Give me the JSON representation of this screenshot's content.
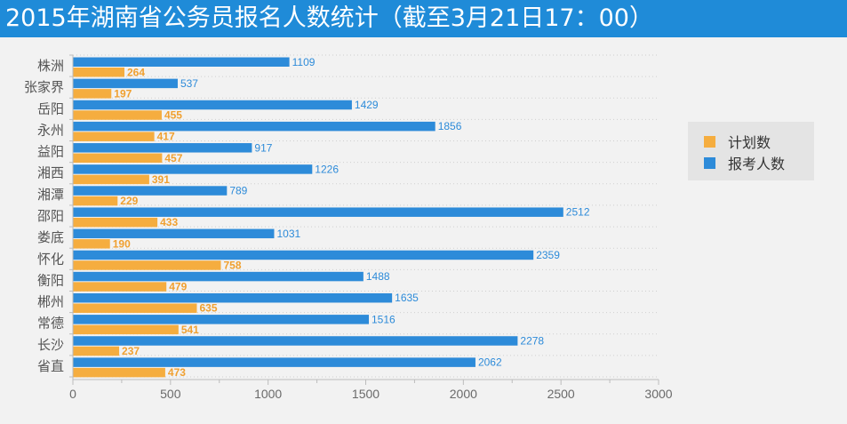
{
  "title": "2015年湖南省公务员报名人数统计（截至3月21日17：00）",
  "colors": {
    "plan": "#f5ad3f",
    "applicants": "#2d8bd9",
    "title_bg": "#1f8bd8"
  },
  "legend": {
    "items": [
      {
        "label": "计划数",
        "color": "#f5ad3f"
      },
      {
        "label": "报考人数",
        "color": "#2d8bd9"
      }
    ]
  },
  "chart_data": {
    "type": "bar",
    "orientation": "horizontal",
    "categories": [
      "株洲",
      "张家界",
      "岳阳",
      "永州",
      "益阳",
      "湘西",
      "湘潭",
      "邵阳",
      "娄底",
      "怀化",
      "衡阳",
      "郴州",
      "常德",
      "长沙",
      "省直"
    ],
    "series": [
      {
        "name": "报考人数",
        "values": [
          1109,
          537,
          1429,
          1856,
          917,
          1226,
          789,
          2512,
          1031,
          2359,
          1488,
          1635,
          1516,
          2278,
          2062
        ]
      },
      {
        "name": "计划数",
        "values": [
          264,
          197,
          455,
          417,
          457,
          391,
          229,
          433,
          190,
          758,
          479,
          635,
          541,
          237,
          473
        ]
      }
    ],
    "xlim": [
      0,
      3000
    ],
    "xticks": [
      0,
      500,
      1000,
      1500,
      2000,
      2500,
      3000
    ],
    "grid": true,
    "legend_position": "right"
  }
}
